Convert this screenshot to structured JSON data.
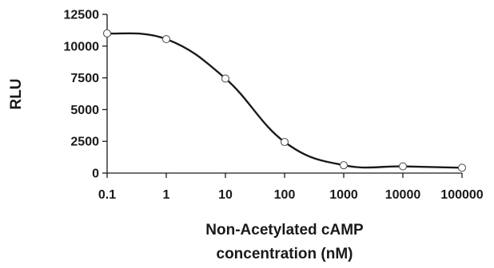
{
  "chart_data": {
    "type": "line",
    "title": "",
    "xlabel_lines": [
      "Non-Acetylated cAMP",
      "concentration (nM)"
    ],
    "ylabel": "RLU",
    "x_scale": "log",
    "xlim": [
      0.1,
      100000
    ],
    "ylim": [
      0,
      12500
    ],
    "x_ticks": [
      0.1,
      1,
      10,
      100,
      1000,
      10000,
      100000
    ],
    "x_tick_labels": [
      "0.1",
      "1",
      "10",
      "100",
      "1000",
      "10000",
      "100000"
    ],
    "y_ticks": [
      0,
      2500,
      5000,
      7500,
      10000,
      12500
    ],
    "y_tick_labels": [
      "0",
      "2500",
      "5000",
      "7500",
      "10000",
      "12500"
    ],
    "grid": false,
    "legend": "none",
    "series": [
      {
        "x": [
          0.1,
          1,
          10,
          100,
          1000,
          10000,
          100000
        ],
        "y": [
          11000,
          10550,
          7450,
          2450,
          620,
          530,
          420
        ],
        "marker": "open-circle",
        "line": "smooth"
      }
    ],
    "colors": {
      "line": "#1a1a1a",
      "marker_fill": "#ffffff",
      "axis": "#1a1a1a"
    }
  }
}
